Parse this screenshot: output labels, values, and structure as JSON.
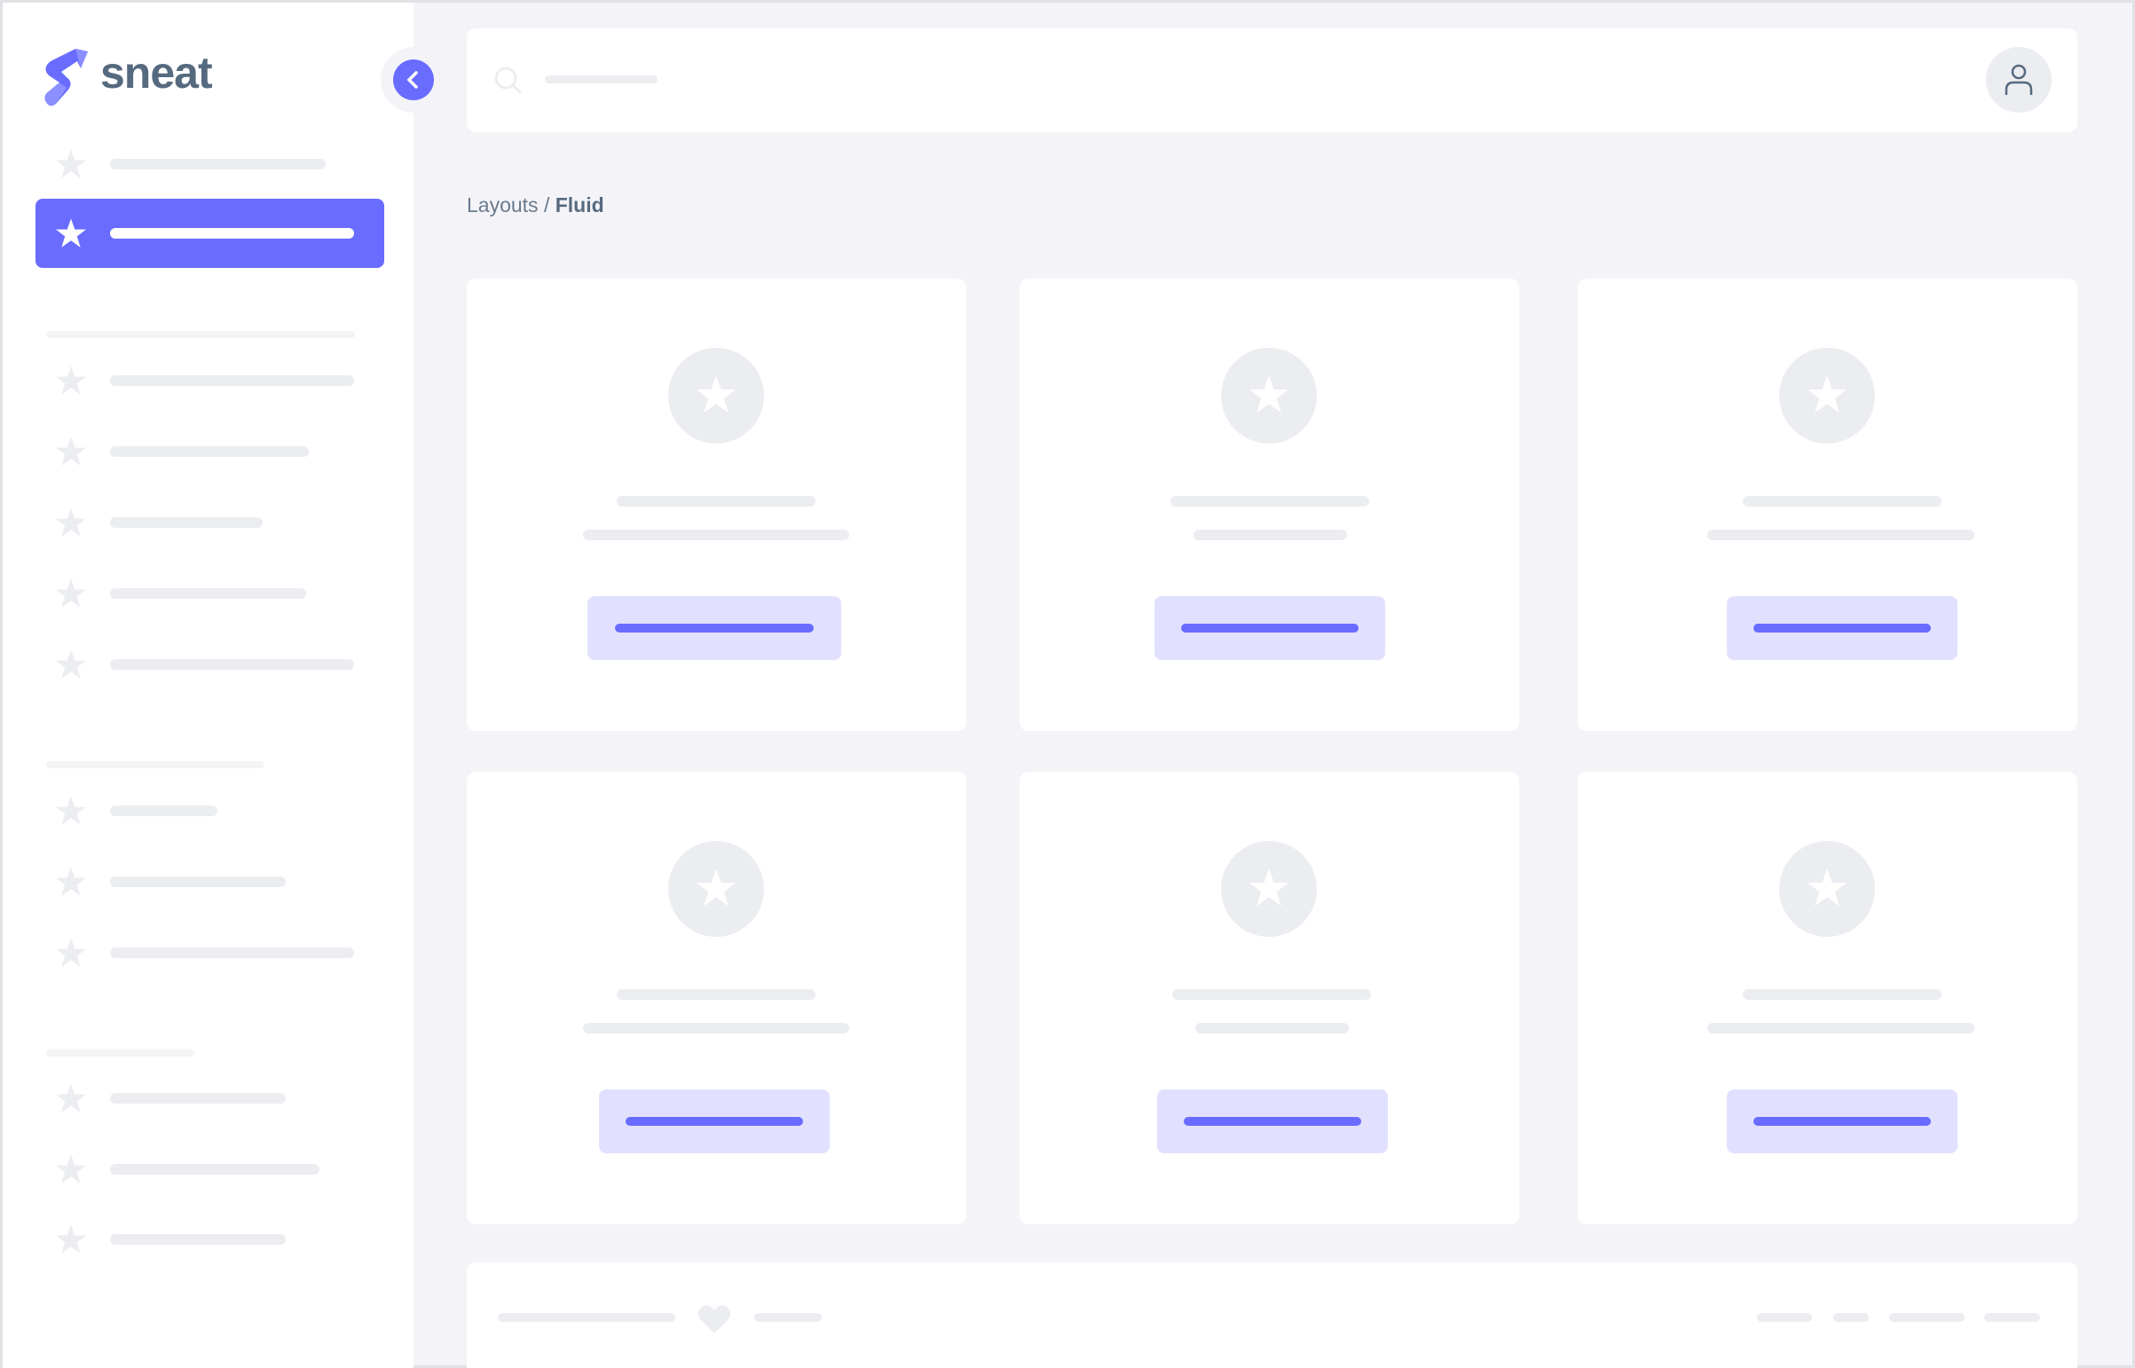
{
  "brand": {
    "name": "sneat",
    "logo_icon": "sneat-s-logo"
  },
  "sidebar": {
    "collapse_icon": "chevron-left-icon",
    "item_icon": "star-icon",
    "active_index": 1,
    "sections": 4
  },
  "header": {
    "search_icon": "search-icon",
    "user_icon": "user-icon"
  },
  "breadcrumb": {
    "parent": "Layouts",
    "separator": " / ",
    "current": "Fluid"
  },
  "footer": {
    "icon": "heart-icon"
  },
  "colors": {
    "primary": "#696cff",
    "primary_light": "#e1e1ff",
    "background": "#f4f4f8",
    "skeleton": "#ecedf1",
    "text": "#566a7f"
  }
}
